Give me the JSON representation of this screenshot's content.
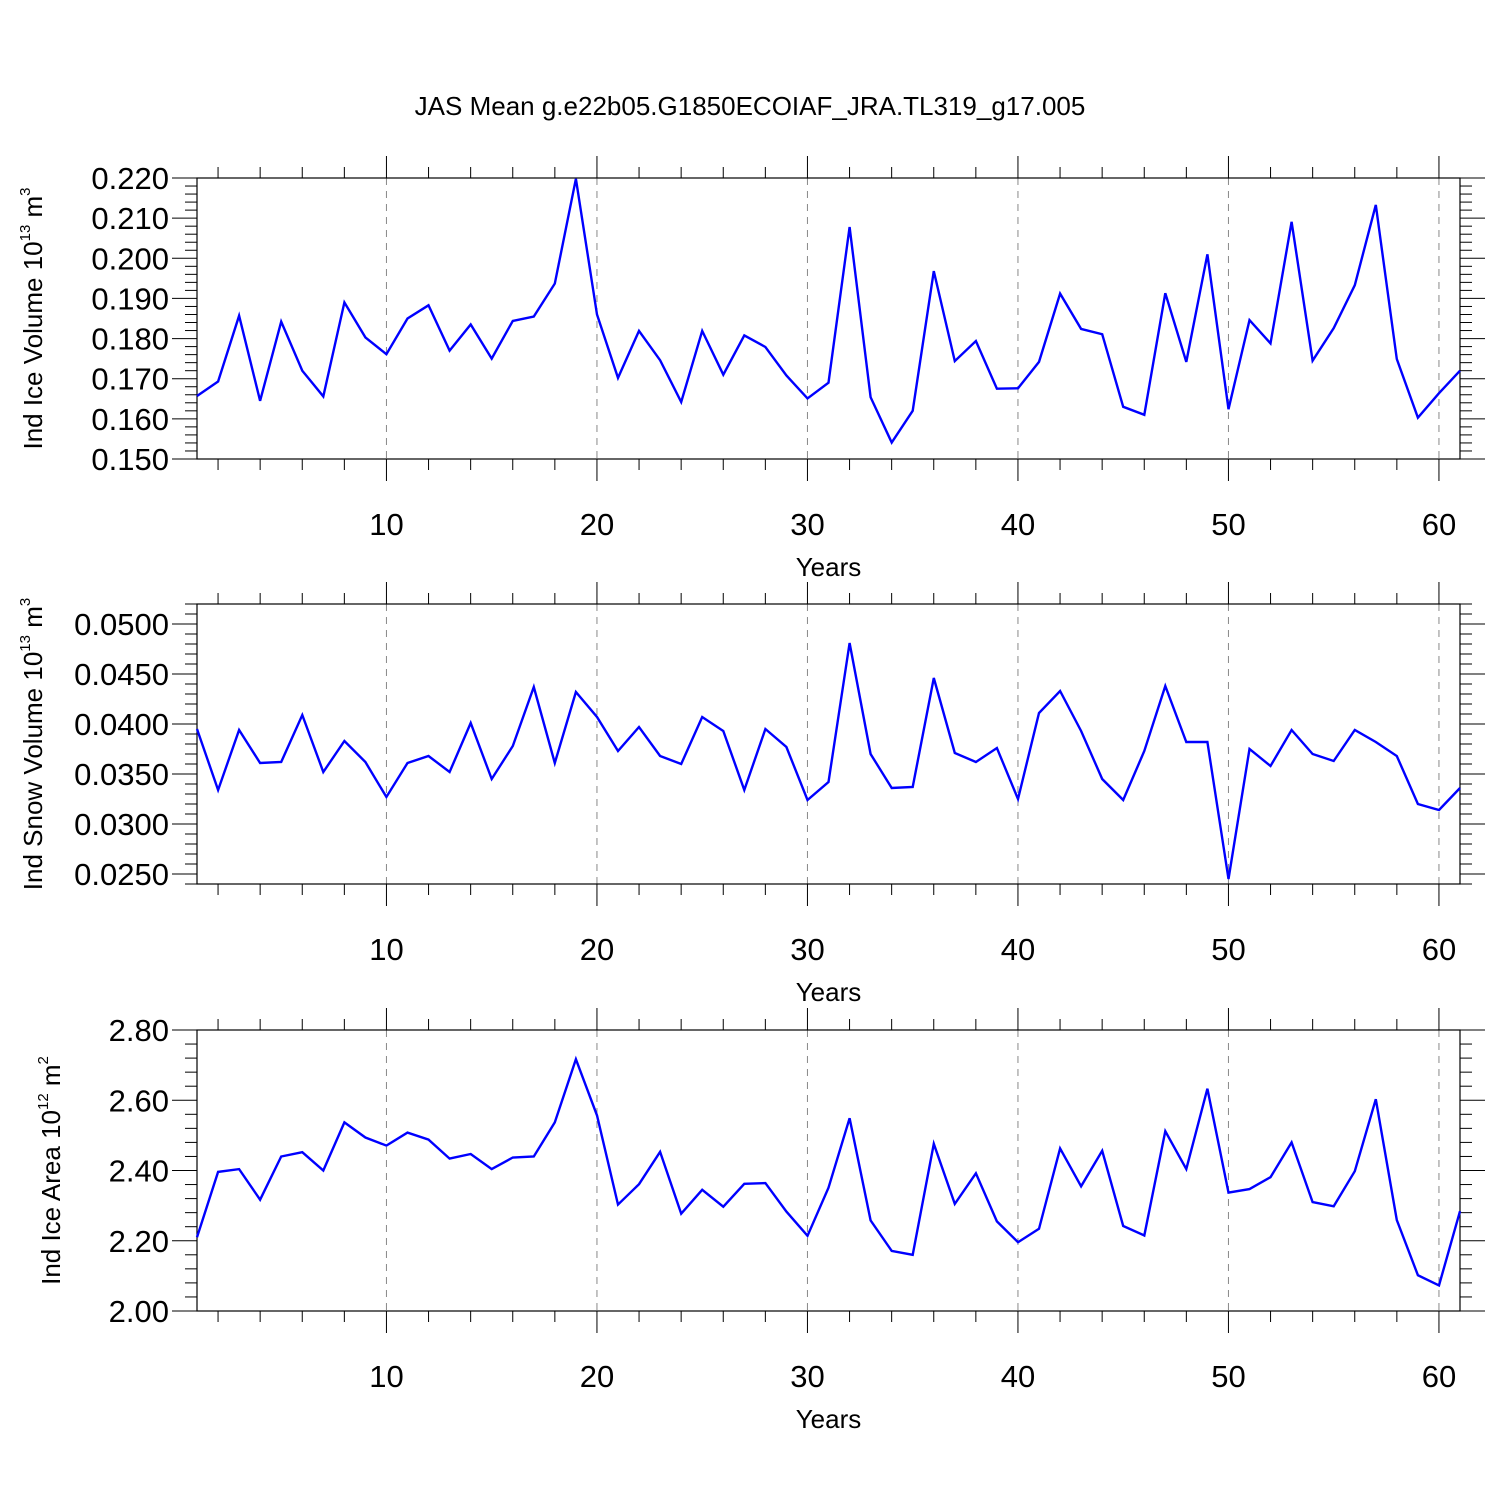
{
  "figure_title": "JAS Mean g.e22b05.G1850ECOIAF_JRA.TL319_g17.005",
  "line_color": "#0000ff",
  "chart_data": [
    {
      "type": "line",
      "name": "ice-volume",
      "ylabel_main": "Ind Ice Volume 10",
      "ylabel_exp": "13",
      "ylabel_unit": " m",
      "ylabel_unit_exp": "3",
      "xlabel": "Years",
      "xlim": [
        1,
        61
      ],
      "ylim": [
        0.15,
        0.22
      ],
      "x_ticks": [
        10,
        20,
        30,
        40,
        50,
        60
      ],
      "y_ticks": [
        0.15,
        0.16,
        0.17,
        0.18,
        0.19,
        0.2,
        0.21,
        0.22
      ],
      "y_tick_labels": [
        "0.150",
        "0.160",
        "0.170",
        "0.180",
        "0.190",
        "0.200",
        "0.210",
        "0.220"
      ],
      "x_tick_labels": [
        "10",
        "20",
        "30",
        "40",
        "50",
        "60"
      ],
      "series": [
        {
          "name": "Ind Ice Volume",
          "x": [
            1,
            2,
            3,
            4,
            5,
            6,
            7,
            8,
            9,
            10,
            11,
            12,
            13,
            14,
            15,
            16,
            17,
            18,
            19,
            20,
            21,
            22,
            23,
            24,
            25,
            26,
            27,
            28,
            29,
            30,
            31,
            32,
            33,
            34,
            35,
            36,
            37,
            38,
            39,
            40,
            41,
            42,
            43,
            44,
            45,
            46,
            47,
            48,
            49,
            50,
            51,
            52,
            53,
            54,
            55,
            56,
            57,
            58,
            59,
            60,
            61
          ],
          "values": [
            0.1657,
            0.1693,
            0.1857,
            0.1645,
            0.1842,
            0.172,
            0.1656,
            0.189,
            0.1803,
            0.1761,
            0.185,
            0.1883,
            0.177,
            0.1835,
            0.175,
            0.1844,
            0.1855,
            0.1937,
            0.2198,
            0.186,
            0.1702,
            0.1819,
            0.1746,
            0.1642,
            0.1819,
            0.171,
            0.1808,
            0.1779,
            0.1708,
            0.1651,
            0.169,
            0.2078,
            0.1654,
            0.1541,
            0.162,
            0.1968,
            0.1744,
            0.1794,
            0.1675,
            0.1676,
            0.1742,
            0.1912,
            0.1824,
            0.1811,
            0.163,
            0.161,
            0.1913,
            0.1742,
            0.201,
            0.1624,
            0.1846,
            0.1788,
            0.2091,
            0.1745,
            0.1826,
            0.1933,
            0.2133,
            0.1749,
            0.1603,
            0.1664,
            0.172
          ]
        }
      ]
    },
    {
      "type": "line",
      "name": "snow-volume",
      "ylabel_main": "Ind Snow Volume 10",
      "ylabel_exp": "13",
      "ylabel_unit": " m",
      "ylabel_unit_exp": "3",
      "xlabel": "Years",
      "xlim": [
        1,
        61
      ],
      "ylim": [
        0.024,
        0.052
      ],
      "x_ticks": [
        10,
        20,
        30,
        40,
        50,
        60
      ],
      "y_ticks": [
        0.025,
        0.03,
        0.035,
        0.04,
        0.045,
        0.05
      ],
      "y_tick_labels": [
        "0.0250",
        "0.0300",
        "0.0350",
        "0.0400",
        "0.0450",
        "0.0500"
      ],
      "x_tick_labels": [
        "10",
        "20",
        "30",
        "40",
        "50",
        "60"
      ],
      "series": [
        {
          "name": "Ind Snow Volume",
          "x": [
            1,
            2,
            3,
            4,
            5,
            6,
            7,
            8,
            9,
            10,
            11,
            12,
            13,
            14,
            15,
            16,
            17,
            18,
            19,
            20,
            21,
            22,
            23,
            24,
            25,
            26,
            27,
            28,
            29,
            30,
            31,
            32,
            33,
            34,
            35,
            36,
            37,
            38,
            39,
            40,
            41,
            42,
            43,
            44,
            45,
            46,
            47,
            48,
            49,
            50,
            51,
            52,
            53,
            54,
            55,
            56,
            57,
            58,
            59,
            60,
            61
          ],
          "values": [
            0.0395,
            0.0334,
            0.0394,
            0.0361,
            0.0362,
            0.0409,
            0.0352,
            0.0383,
            0.0362,
            0.0327,
            0.0361,
            0.0368,
            0.0352,
            0.0401,
            0.0345,
            0.0378,
            0.0437,
            0.0361,
            0.0432,
            0.0407,
            0.0373,
            0.0397,
            0.0368,
            0.036,
            0.0407,
            0.0393,
            0.0334,
            0.0395,
            0.0377,
            0.0324,
            0.0342,
            0.0481,
            0.037,
            0.0336,
            0.0337,
            0.0446,
            0.0371,
            0.0362,
            0.0376,
            0.0325,
            0.0411,
            0.0433,
            0.0393,
            0.0345,
            0.0324,
            0.0373,
            0.0438,
            0.0382,
            0.0382,
            0.0245,
            0.0375,
            0.0358,
            0.0394,
            0.037,
            0.0363,
            0.0394,
            0.0382,
            0.0368,
            0.032,
            0.0314,
            0.0336
          ]
        }
      ]
    },
    {
      "type": "line",
      "name": "ice-area",
      "ylabel_main": "Ind Ice Area 10",
      "ylabel_exp": "12",
      "ylabel_unit": " m",
      "ylabel_unit_exp": "2",
      "xlabel": "Years",
      "xlim": [
        1,
        61
      ],
      "ylim": [
        2.0,
        2.8
      ],
      "x_ticks": [
        10,
        20,
        30,
        40,
        50,
        60
      ],
      "y_ticks": [
        2.0,
        2.2,
        2.4,
        2.6,
        2.8
      ],
      "y_tick_labels": [
        "2.00",
        "2.20",
        "2.40",
        "2.60",
        "2.80"
      ],
      "x_tick_labels": [
        "10",
        "20",
        "30",
        "40",
        "50",
        "60"
      ],
      "series": [
        {
          "name": "Ind Ice Area",
          "x": [
            1,
            2,
            3,
            4,
            5,
            6,
            7,
            8,
            9,
            10,
            11,
            12,
            13,
            14,
            15,
            16,
            17,
            18,
            19,
            20,
            21,
            22,
            23,
            24,
            25,
            26,
            27,
            28,
            29,
            30,
            31,
            32,
            33,
            34,
            35,
            36,
            37,
            38,
            39,
            40,
            41,
            42,
            43,
            44,
            45,
            46,
            47,
            48,
            49,
            50,
            51,
            52,
            53,
            54,
            55,
            56,
            57,
            58,
            59,
            60,
            61
          ],
          "values": [
            2.21,
            2.396,
            2.404,
            2.317,
            2.44,
            2.452,
            2.4,
            2.537,
            2.494,
            2.471,
            2.508,
            2.488,
            2.434,
            2.447,
            2.404,
            2.437,
            2.44,
            2.537,
            2.717,
            2.557,
            2.303,
            2.361,
            2.453,
            2.277,
            2.345,
            2.297,
            2.362,
            2.364,
            2.283,
            2.214,
            2.351,
            2.549,
            2.258,
            2.171,
            2.16,
            2.476,
            2.305,
            2.392,
            2.255,
            2.196,
            2.234,
            2.463,
            2.355,
            2.456,
            2.242,
            2.215,
            2.512,
            2.404,
            2.633,
            2.337,
            2.347,
            2.381,
            2.48,
            2.31,
            2.298,
            2.398,
            2.603,
            2.259,
            2.102,
            2.073,
            2.284
          ]
        }
      ]
    }
  ]
}
